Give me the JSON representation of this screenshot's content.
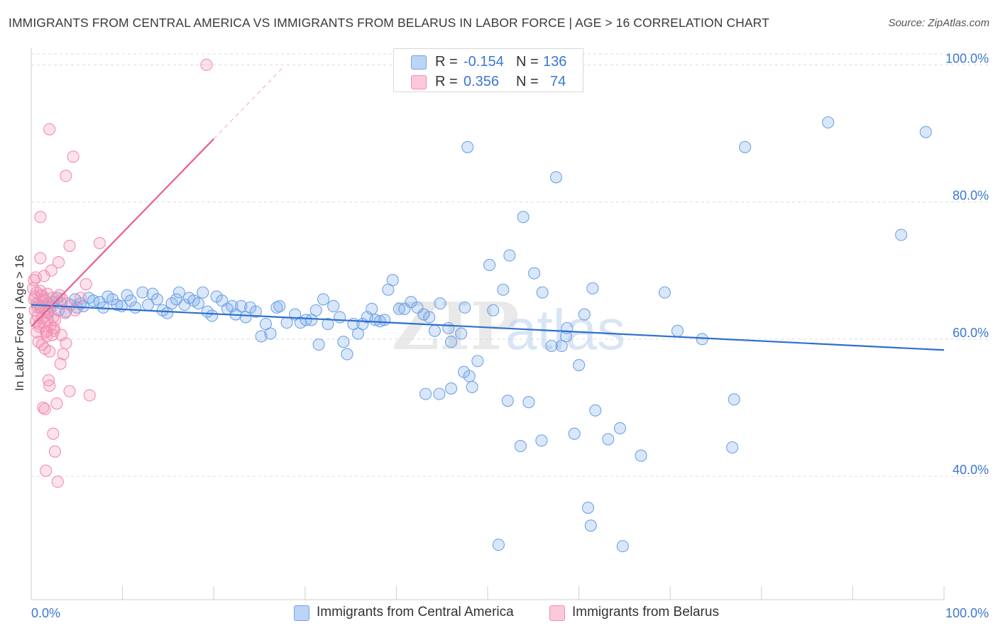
{
  "title": "IMMIGRANTS FROM CENTRAL AMERICA VS IMMIGRANTS FROM BELARUS IN LABOR FORCE | AGE > 16 CORRELATION CHART",
  "source": "Source: ZipAtlas.com",
  "watermark": {
    "zip": "ZIP",
    "atlas": "atlas"
  },
  "legend": {
    "r_label": "R =",
    "n_label": "N =",
    "series": [
      {
        "name": "Immigrants from Central America",
        "r": "-0.154",
        "n": "136",
        "color": "#6fa3e8"
      },
      {
        "name": "Immigrants from Belarus",
        "r": "0.356",
        "n": "74",
        "color": "#f28db0"
      }
    ]
  },
  "chart_data": {
    "type": "scatter",
    "ylabel": "In Labor Force | Age > 16",
    "xlim": [
      0,
      100
    ],
    "ylim": [
      22,
      102
    ],
    "x_tick_labels": [
      "0.0%",
      "100.0%"
    ],
    "y_ticks": [
      {
        "value": 40,
        "label": "40.0%"
      },
      {
        "value": 60,
        "label": "60.0%"
      },
      {
        "value": 80,
        "label": "80.0%"
      },
      {
        "value": 100,
        "label": "100.0%"
      }
    ],
    "series": [
      {
        "name": "Immigrants from Central America",
        "color": "#6fa3e8",
        "trend": {
          "x0": 0,
          "y0": 65.0,
          "x1": 100,
          "y1": 58.4,
          "color": "#2f6fce"
        },
        "points": [
          [
            0.6,
            65.2
          ],
          [
            1.0,
            64.6
          ],
          [
            1.3,
            65.8
          ],
          [
            1.8,
            63.8
          ],
          [
            2.1,
            64.8
          ],
          [
            2.4,
            65.4
          ],
          [
            2.8,
            66.0
          ],
          [
            3.3,
            65.2
          ],
          [
            3.8,
            64.0
          ],
          [
            4.3,
            65.0
          ],
          [
            4.8,
            65.8
          ],
          [
            5.4,
            65.2
          ],
          [
            5.7,
            64.8
          ],
          [
            6.3,
            66.0
          ],
          [
            6.8,
            65.6
          ],
          [
            7.5,
            65.4
          ],
          [
            7.9,
            64.6
          ],
          [
            8.4,
            66.2
          ],
          [
            8.9,
            65.8
          ],
          [
            9.4,
            65.0
          ],
          [
            9.9,
            64.8
          ],
          [
            10.5,
            66.4
          ],
          [
            10.9,
            65.6
          ],
          [
            11.4,
            64.6
          ],
          [
            12.2,
            66.8
          ],
          [
            12.8,
            65.0
          ],
          [
            13.3,
            66.6
          ],
          [
            13.8,
            65.8
          ],
          [
            14.4,
            64.2
          ],
          [
            14.9,
            63.8
          ],
          [
            15.4,
            65.2
          ],
          [
            15.9,
            65.8
          ],
          [
            16.2,
            66.8
          ],
          [
            16.8,
            65.0
          ],
          [
            17.3,
            66.0
          ],
          [
            17.8,
            65.6
          ],
          [
            18.3,
            65.2
          ],
          [
            18.8,
            66.8
          ],
          [
            19.3,
            64.0
          ],
          [
            19.8,
            63.4
          ],
          [
            20.3,
            66.2
          ],
          [
            20.9,
            65.6
          ],
          [
            21.5,
            64.4
          ],
          [
            22.0,
            64.8
          ],
          [
            22.4,
            63.6
          ],
          [
            23.0,
            64.8
          ],
          [
            23.5,
            63.2
          ],
          [
            24.0,
            64.6
          ],
          [
            24.6,
            64.0
          ],
          [
            25.2,
            60.4
          ],
          [
            25.7,
            62.2
          ],
          [
            26.2,
            60.8
          ],
          [
            26.9,
            64.6
          ],
          [
            27.2,
            64.8
          ],
          [
            28.0,
            62.4
          ],
          [
            28.9,
            63.6
          ],
          [
            29.5,
            62.4
          ],
          [
            30.1,
            62.8
          ],
          [
            30.7,
            62.8
          ],
          [
            31.2,
            64.2
          ],
          [
            31.5,
            59.2
          ],
          [
            32.0,
            65.8
          ],
          [
            32.5,
            62.2
          ],
          [
            33.1,
            64.8
          ],
          [
            33.8,
            63.2
          ],
          [
            34.2,
            59.6
          ],
          [
            34.6,
            57.8
          ],
          [
            35.3,
            62.2
          ],
          [
            35.8,
            60.8
          ],
          [
            36.3,
            62.2
          ],
          [
            36.8,
            63.2
          ],
          [
            37.3,
            64.4
          ],
          [
            37.7,
            62.8
          ],
          [
            38.2,
            62.6
          ],
          [
            38.7,
            62.8
          ],
          [
            39.1,
            67.2
          ],
          [
            39.6,
            68.6
          ],
          [
            40.3,
            64.4
          ],
          [
            40.9,
            64.4
          ],
          [
            41.6,
            65.4
          ],
          [
            42.3,
            64.6
          ],
          [
            43.0,
            63.6
          ],
          [
            43.6,
            63.2
          ],
          [
            44.2,
            61.2
          ],
          [
            44.8,
            65.2
          ],
          [
            45.7,
            61.6
          ],
          [
            46.0,
            59.6
          ],
          [
            47.4,
            55.2
          ],
          [
            48.0,
            54.6
          ],
          [
            48.3,
            53.0
          ],
          [
            48.9,
            56.8
          ],
          [
            50.2,
            70.8
          ],
          [
            50.6,
            64.2
          ],
          [
            51.7,
            67.2
          ],
          [
            52.2,
            51.0
          ],
          [
            52.4,
            72.2
          ],
          [
            53.6,
            44.4
          ],
          [
            53.9,
            77.8
          ],
          [
            54.5,
            50.8
          ],
          [
            55.1,
            69.6
          ],
          [
            55.9,
            45.2
          ],
          [
            56.0,
            66.8
          ],
          [
            57.0,
            59.0
          ],
          [
            57.5,
            83.6
          ],
          [
            58.1,
            59.0
          ],
          [
            58.7,
            61.6
          ],
          [
            59.5,
            46.2
          ],
          [
            60.0,
            56.2
          ],
          [
            60.6,
            63.6
          ],
          [
            61.0,
            35.4
          ],
          [
            61.3,
            32.8
          ],
          [
            61.8,
            49.6
          ],
          [
            63.2,
            45.4
          ],
          [
            64.5,
            47.0
          ],
          [
            64.8,
            29.8
          ],
          [
            66.8,
            43.0
          ],
          [
            69.4,
            66.8
          ],
          [
            70.8,
            61.2
          ],
          [
            73.5,
            60.0
          ],
          [
            76.8,
            44.2
          ],
          [
            77.0,
            51.2
          ],
          [
            78.2,
            88.0
          ],
          [
            58.6,
            60.4
          ],
          [
            61.5,
            67.4
          ],
          [
            44.7,
            52.0
          ],
          [
            43.2,
            52.0
          ],
          [
            46.0,
            52.8
          ],
          [
            47.1,
            60.8
          ],
          [
            51.2,
            30.0
          ],
          [
            47.5,
            64.6
          ],
          [
            47.8,
            88.0
          ],
          [
            87.3,
            91.6
          ],
          [
            95.3,
            75.2
          ],
          [
            98.0,
            90.2
          ],
          [
            3.0,
            64.2
          ],
          [
            5.0,
            64.6
          ]
        ]
      },
      {
        "name": "Immigrants from Belarus",
        "color": "#f28db0",
        "trend": {
          "x0": 0,
          "y0": 61.8,
          "x1": 20,
          "y1": 89.2,
          "color": "#e8608f",
          "dash_to": [
            27.5,
            99.5
          ]
        },
        "points": [
          [
            0.2,
            67.4
          ],
          [
            0.3,
            65.8
          ],
          [
            0.4,
            64.2
          ],
          [
            0.5,
            62.6
          ],
          [
            0.6,
            66.8
          ],
          [
            0.7,
            63.4
          ],
          [
            0.8,
            65.0
          ],
          [
            0.9,
            61.8
          ],
          [
            1.0,
            67.0
          ],
          [
            1.1,
            64.8
          ],
          [
            1.2,
            63.0
          ],
          [
            1.3,
            66.2
          ],
          [
            1.4,
            62.4
          ],
          [
            1.5,
            65.6
          ],
          [
            1.6,
            64.0
          ],
          [
            1.7,
            61.2
          ],
          [
            1.8,
            66.6
          ],
          [
            1.9,
            63.8
          ],
          [
            2.0,
            65.2
          ],
          [
            2.1,
            62.0
          ],
          [
            2.2,
            64.6
          ],
          [
            2.3,
            66.0
          ],
          [
            2.4,
            63.2
          ],
          [
            2.5,
            61.6
          ],
          [
            0.3,
            68.6
          ],
          [
            0.5,
            69.0
          ],
          [
            0.8,
            59.6
          ],
          [
            1.2,
            59.2
          ],
          [
            1.5,
            58.6
          ],
          [
            1.7,
            60.4
          ],
          [
            2.0,
            58.2
          ],
          [
            2.3,
            60.6
          ],
          [
            2.6,
            62.8
          ],
          [
            1.0,
            71.8
          ],
          [
            1.4,
            69.2
          ],
          [
            2.2,
            70.0
          ],
          [
            3.0,
            71.2
          ],
          [
            3.3,
            60.6
          ],
          [
            3.5,
            57.8
          ],
          [
            3.8,
            59.4
          ],
          [
            3.1,
            66.4
          ],
          [
            3.4,
            65.8
          ],
          [
            3.7,
            63.8
          ],
          [
            4.0,
            65.2
          ],
          [
            1.9,
            54.0
          ],
          [
            2.0,
            53.2
          ],
          [
            1.3,
            50.0
          ],
          [
            1.5,
            49.8
          ],
          [
            2.8,
            50.6
          ],
          [
            4.2,
            52.4
          ],
          [
            6.4,
            51.8
          ],
          [
            2.4,
            46.2
          ],
          [
            2.6,
            43.6
          ],
          [
            1.6,
            40.8
          ],
          [
            2.9,
            39.2
          ],
          [
            1.0,
            77.8
          ],
          [
            2.0,
            90.6
          ],
          [
            3.8,
            83.8
          ],
          [
            4.6,
            86.6
          ],
          [
            4.2,
            73.6
          ],
          [
            7.5,
            74.0
          ],
          [
            6.0,
            68.0
          ],
          [
            5.4,
            66.0
          ],
          [
            4.8,
            64.2
          ],
          [
            0.6,
            61.0
          ],
          [
            0.9,
            62.2
          ],
          [
            1.6,
            61.0
          ],
          [
            2.5,
            61.2
          ],
          [
            3.2,
            56.4
          ],
          [
            19.2,
            100.0
          ],
          [
            0.4,
            66.2
          ],
          [
            0.7,
            64.6
          ],
          [
            1.1,
            66.4
          ],
          [
            1.8,
            62.8
          ]
        ]
      }
    ]
  }
}
